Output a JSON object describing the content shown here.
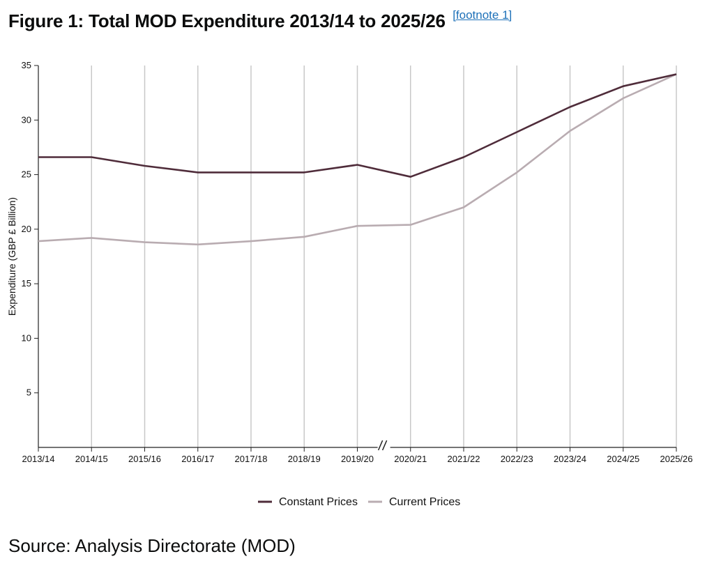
{
  "page": {
    "title": "Figure 1: Total MOD Expenditure 2013/14 to 2025/26",
    "footnote_link": "[footnote 1]",
    "source": "Source: Analysis Directorate (MOD)"
  },
  "chart_data": {
    "type": "line",
    "title": "Figure 1: Total MOD Expenditure 2013/14 to 2025/26",
    "xlabel": "",
    "ylabel": "Expenditure (GBP £ Billion)",
    "categories": [
      "2013/14",
      "2014/15",
      "2015/16",
      "2016/17",
      "2017/18",
      "2018/19",
      "2019/20",
      "2020/21",
      "2021/22",
      "2022/23",
      "2023/24",
      "2024/25",
      "2025/26"
    ],
    "yticks": [
      5,
      10,
      15,
      20,
      25,
      30,
      35
    ],
    "ylim": [
      0,
      35
    ],
    "grid": "vertical",
    "axis_break": "between 2019/20 and 2020/21",
    "legend_position": "bottom-center",
    "series": [
      {
        "name": "Constant Prices",
        "color": "#4f2c3a",
        "values": [
          26.6,
          26.6,
          25.8,
          25.2,
          25.2,
          25.2,
          25.9,
          24.8,
          26.6,
          28.9,
          31.2,
          33.1,
          34.2
        ]
      },
      {
        "name": "Current Prices",
        "color": "#b9acb1",
        "values": [
          18.9,
          19.2,
          18.8,
          18.6,
          18.9,
          19.3,
          20.3,
          20.4,
          22.0,
          25.2,
          29.0,
          32.0,
          34.2
        ]
      }
    ]
  }
}
